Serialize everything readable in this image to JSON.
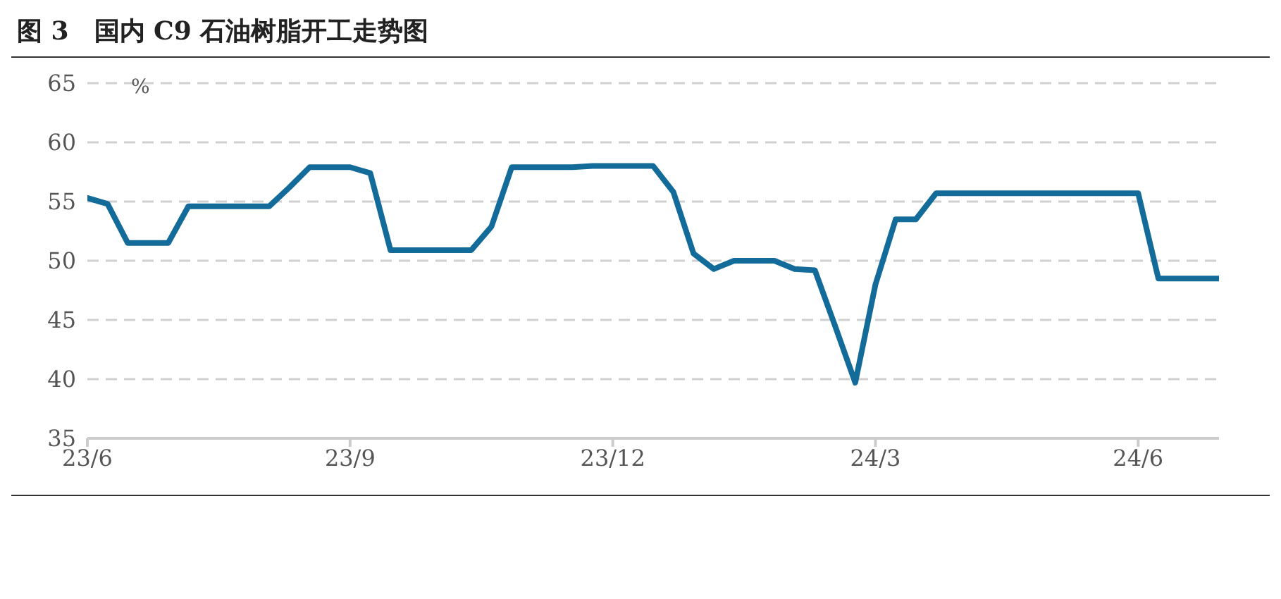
{
  "chart_data": {
    "type": "line",
    "title": "图 3　国内 C9 石油树脂开工走势图",
    "ylabel": "%",
    "categories": [
      "23/6",
      null,
      null,
      null,
      null,
      null,
      null,
      null,
      null,
      null,
      null,
      null,
      null,
      "23/9",
      null,
      null,
      null,
      null,
      null,
      null,
      null,
      null,
      null,
      null,
      null,
      null,
      "23/12",
      null,
      null,
      null,
      null,
      null,
      null,
      null,
      null,
      null,
      null,
      null,
      null,
      "24/3",
      null,
      null,
      null,
      null,
      null,
      null,
      null,
      null,
      null,
      null,
      null,
      null,
      "24/6",
      null,
      null,
      null,
      null
    ],
    "series": [
      {
        "color": "#136b9a",
        "values": [
          55.3,
          54.8,
          51.5,
          51.5,
          51.5,
          54.6,
          54.6,
          54.6,
          54.6,
          54.6,
          56.2,
          57.9,
          57.9,
          57.9,
          57.4,
          50.9,
          50.9,
          50.9,
          50.9,
          50.9,
          52.9,
          57.9,
          57.9,
          57.9,
          57.9,
          58.0,
          58.0,
          58.0,
          58.0,
          55.8,
          50.6,
          49.3,
          50.0,
          50.0,
          50.0,
          49.3,
          49.2,
          44.5,
          39.7,
          48.0,
          53.5,
          53.5,
          55.7,
          55.7,
          55.7,
          55.7,
          55.7,
          55.7,
          55.7,
          55.7,
          55.7,
          55.7,
          55.7,
          48.5,
          48.5,
          48.5,
          48.5
        ]
      }
    ],
    "ylim": [
      35,
      65
    ],
    "yticks": [
      35,
      40,
      45,
      50,
      55,
      60,
      65
    ],
    "grid": "y",
    "legend": false,
    "marker": "none",
    "line_style": "solid"
  }
}
